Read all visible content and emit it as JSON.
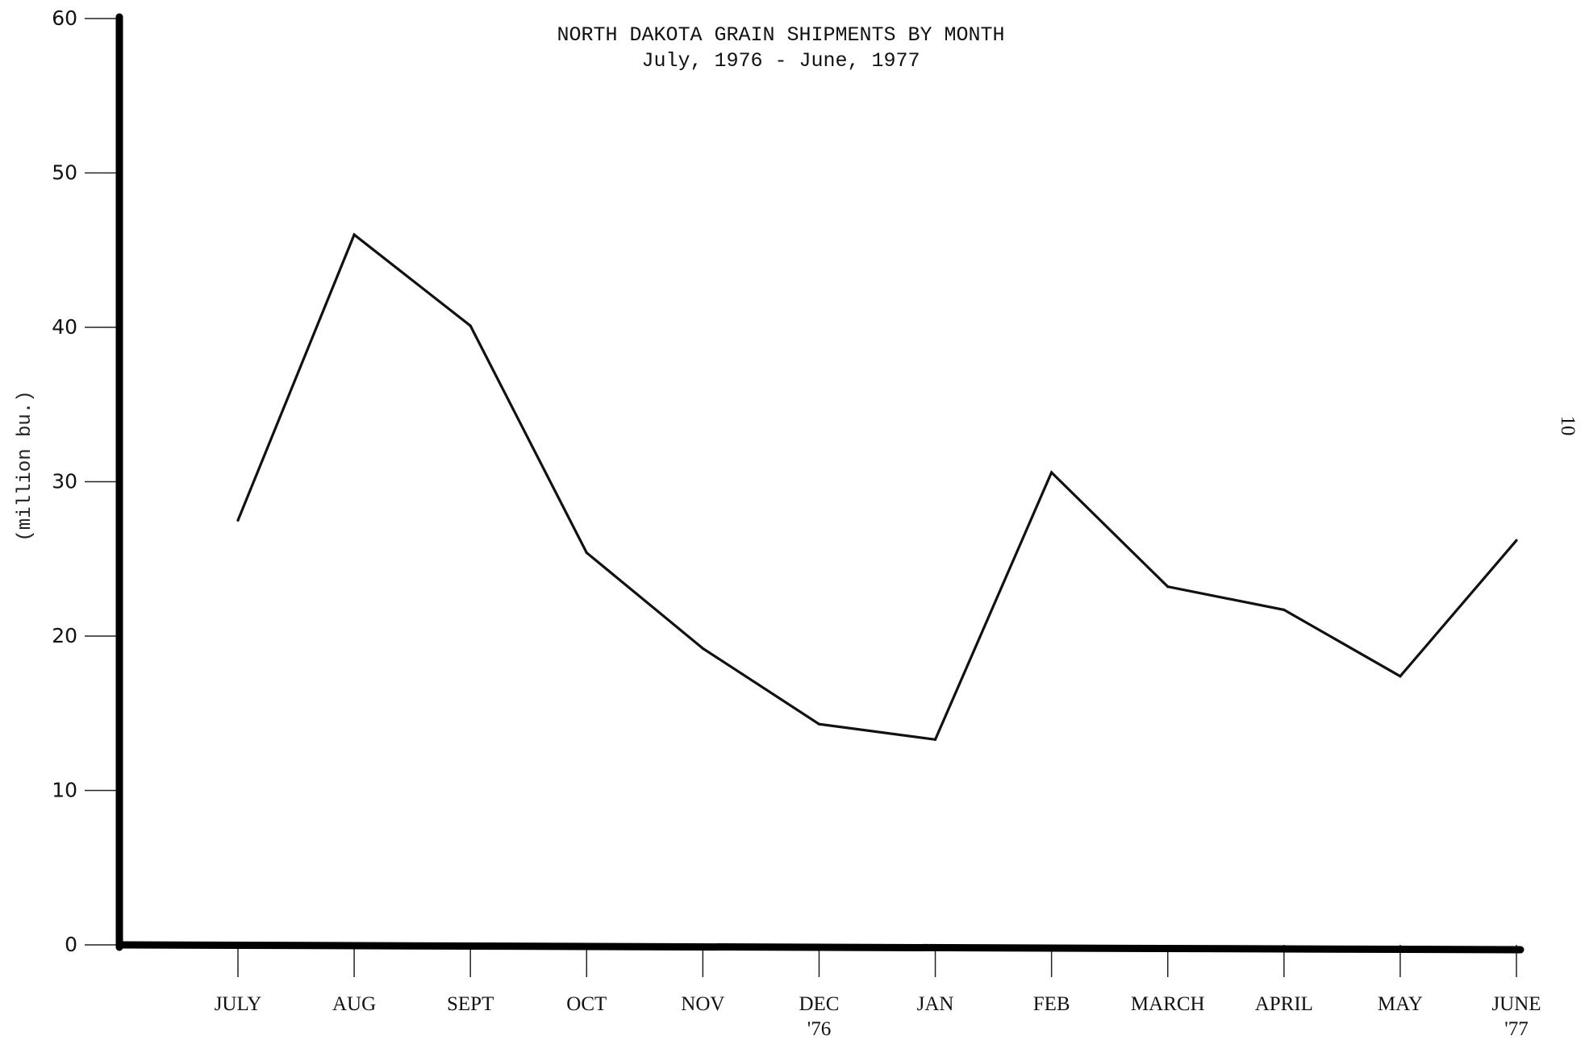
{
  "page_number": "10",
  "chart_data": {
    "type": "line",
    "title": "NORTH DAKOTA GRAIN SHIPMENTS BY MONTH",
    "subtitle": "July, 1976 - June, 1977",
    "ylabel": "(million bu.)",
    "xlabel": "",
    "ylim": [
      0,
      60
    ],
    "yticks": [
      0,
      10,
      20,
      30,
      40,
      50,
      60
    ],
    "categories": [
      "JULY",
      "AUG",
      "SEPT",
      "OCT",
      "NOV",
      "DEC",
      "JAN",
      "FEB",
      "MARCH",
      "APRIL",
      "MAY",
      "JUNE"
    ],
    "category_sublabels": [
      "",
      "",
      "",
      "",
      "",
      "'76",
      "",
      "",
      "",
      "",
      "",
      "'77"
    ],
    "series": [
      {
        "values": [
          27.5,
          46.0,
          40.1,
          25.4,
          19.2,
          14.3,
          13.3,
          30.6,
          23.2,
          21.7,
          17.4,
          26.2
        ]
      }
    ],
    "grid": false,
    "legend": "none",
    "colors": {
      "line": "#111111",
      "axis": "#000000"
    }
  }
}
